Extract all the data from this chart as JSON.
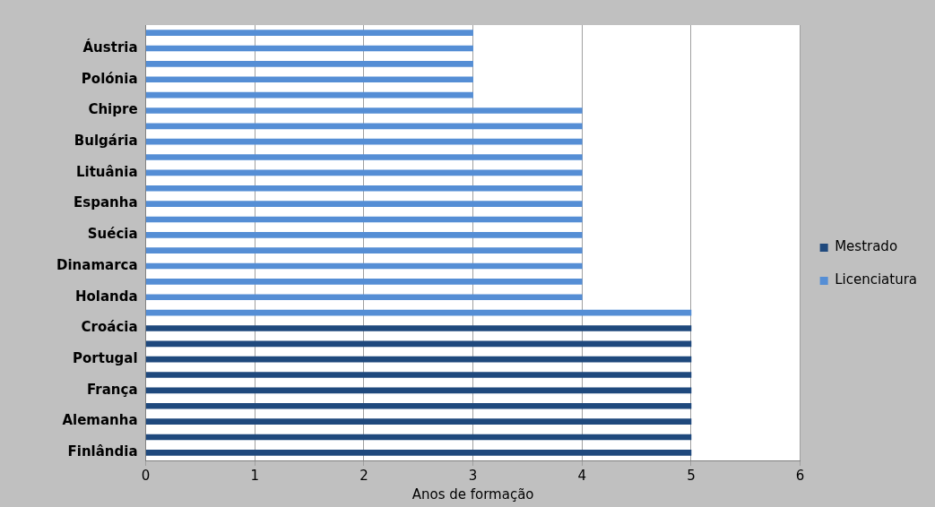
{
  "chart_data": {
    "type": "bar",
    "orientation": "horizontal",
    "xlabel": "Anos de formação",
    "categories": [
      null,
      "Áustria",
      null,
      "Polónia",
      null,
      "Chipre",
      null,
      "Bulgária",
      null,
      "Lituânia",
      null,
      "Espanha",
      null,
      "Suécia",
      null,
      "Dinamarca",
      null,
      "Holanda",
      null,
      "Croácia",
      null,
      "Portugal",
      null,
      "França",
      null,
      "Alemanha",
      null,
      "Finlândia"
    ],
    "series": [
      {
        "name": "Mestrado",
        "color": "#1f497d",
        "values": [
          null,
          null,
          null,
          null,
          null,
          null,
          null,
          null,
          null,
          null,
          null,
          null,
          null,
          null,
          null,
          null,
          null,
          null,
          null,
          5,
          5,
          5,
          5,
          5,
          5,
          5,
          5,
          5
        ]
      },
      {
        "name": "Licenciatura",
        "color": "#558ed5",
        "values": [
          3,
          3,
          3,
          3,
          3,
          4,
          4,
          4,
          4,
          4,
          4,
          4,
          4,
          4,
          4,
          4,
          4,
          4,
          5,
          null,
          null,
          null,
          null,
          null,
          null,
          null,
          null,
          null
        ]
      }
    ],
    "xlim": [
      0,
      6
    ],
    "xticks": [
      0,
      1,
      2,
      3,
      4,
      5,
      6
    ],
    "grid": "x",
    "legend": "right"
  }
}
